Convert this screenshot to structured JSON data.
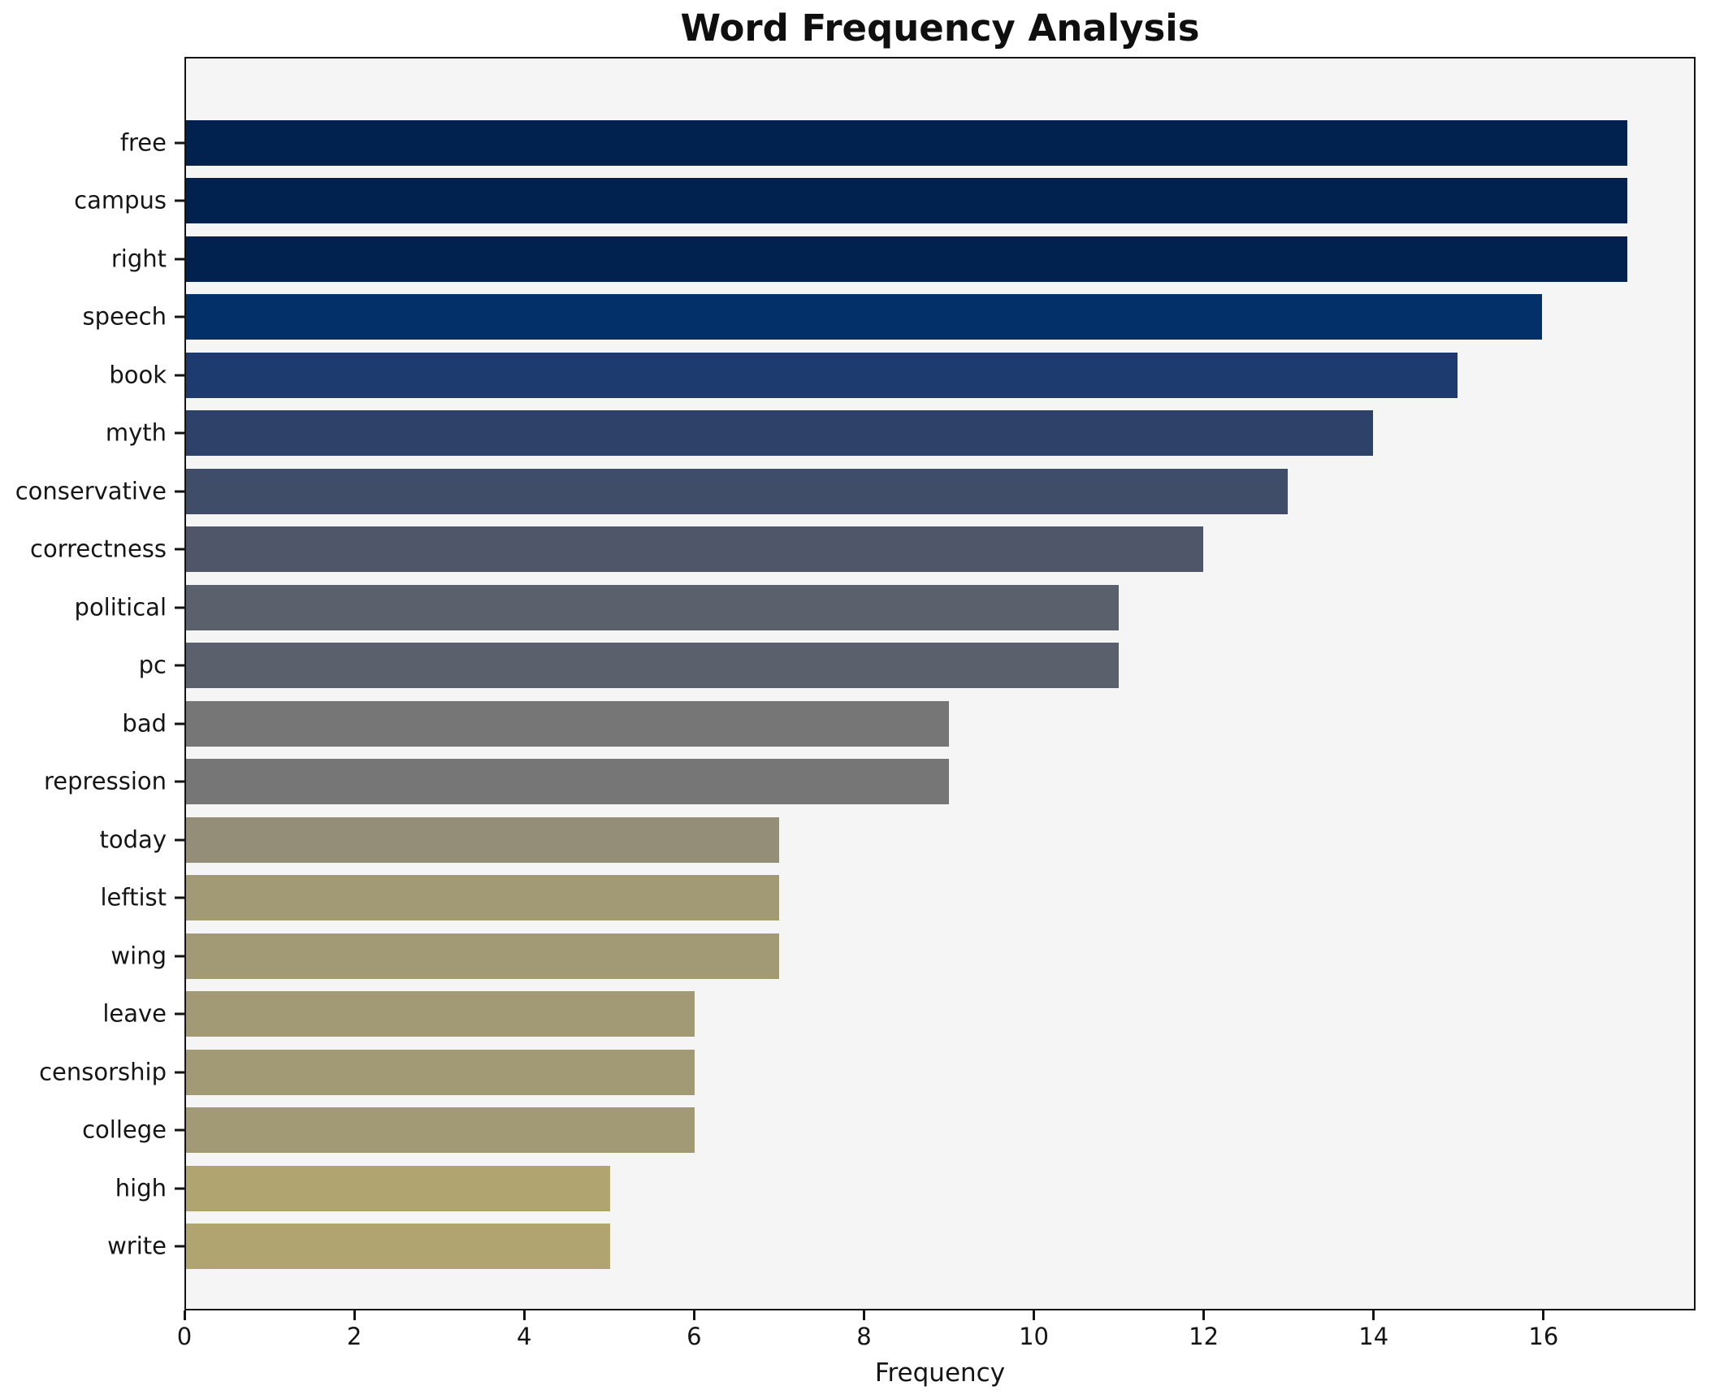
{
  "chart_data": {
    "type": "bar",
    "orientation": "horizontal",
    "title": "Word Frequency Analysis",
    "xlabel": "Frequency",
    "ylabel": "",
    "categories": [
      "free",
      "campus",
      "right",
      "speech",
      "book",
      "myth",
      "conservative",
      "correctness",
      "political",
      "pc",
      "bad",
      "repression",
      "today",
      "leftist",
      "wing",
      "leave",
      "censorship",
      "college",
      "high",
      "write"
    ],
    "values": [
      17,
      17,
      17,
      16,
      15,
      14,
      13,
      12,
      11,
      11,
      9,
      9,
      7,
      7,
      7,
      6,
      6,
      6,
      5,
      5
    ],
    "bar_colors": [
      "#01224e",
      "#01224e",
      "#01224e",
      "#04306a",
      "#1e3b70",
      "#2e4169",
      "#404d69",
      "#505669",
      "#5a606c",
      "#5a606c",
      "#767676",
      "#767676",
      "#948e78",
      "#a19a74",
      "#a19a74",
      "#a19a74",
      "#a19a74",
      "#a19a74",
      "#b0a470",
      "#b0a470"
    ],
    "xlim": [
      0,
      17.79
    ],
    "xticks": [
      0,
      2,
      4,
      6,
      8,
      10,
      12,
      14,
      16
    ],
    "grid": false,
    "legend": null,
    "colormap": "cividis",
    "plot_background": "#f5f5f6",
    "figure_background": "#ffffff",
    "spine_color": "#141414",
    "text_color": "#151515"
  }
}
